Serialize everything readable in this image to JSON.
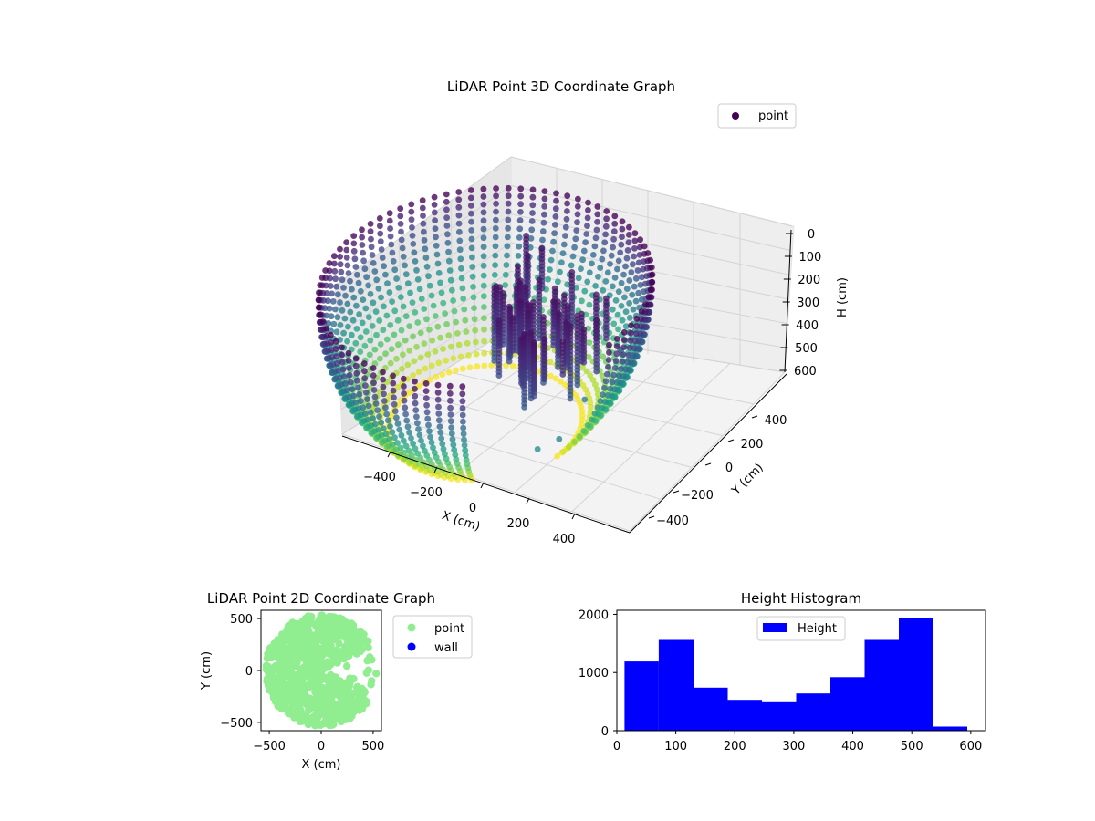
{
  "chart_data": [
    {
      "type": "scatter",
      "projection": "3d",
      "title": "LiDAR Point 3D Coordinate Graph",
      "xlabel": "X (cm)",
      "ylabel": "Y (cm)",
      "zlabel": "H (cm)",
      "xticks": [
        "−400",
        "−200",
        "0",
        "200",
        "400"
      ],
      "yticks": [
        "400",
        "200",
        "0",
        "−200",
        "−400"
      ],
      "zticks": [
        "0",
        "100",
        "200",
        "300",
        "400",
        "500",
        "600"
      ],
      "z_inverted": true,
      "colormap": "viridis",
      "legend": {
        "position": "top-right",
        "entries": [
          "point"
        ]
      },
      "grid": true,
      "description_shape": "bowl-shaped shell of points: outer ring radius about 550 cm, height 0-600 cm, plus an inner cluster near the top"
    },
    {
      "type": "scatter",
      "title": "LiDAR Point 2D Coordinate Graph",
      "xlabel": "X (cm)",
      "ylabel": "Y (cm)",
      "xlim": [
        -580,
        580
      ],
      "ylim": [
        -580,
        580
      ],
      "xticks": [
        -500,
        0,
        500
      ],
      "yticks": [
        -500,
        0,
        500
      ],
      "series": [
        {
          "name": "point",
          "color": "#90ee90"
        },
        {
          "name": "wall",
          "color": "#0000ff"
        }
      ],
      "legend": {
        "position": "outside-right"
      },
      "grid": false
    },
    {
      "type": "bar",
      "subtype": "histogram",
      "title": "Height Histogram",
      "bin_edges": [
        13,
        71,
        130,
        188,
        246,
        304,
        362,
        420,
        478,
        536,
        594
      ],
      "values": [
        1190,
        1560,
        740,
        530,
        490,
        640,
        920,
        1560,
        1940,
        70
      ],
      "xlim": [
        0,
        625
      ],
      "ylim": [
        0,
        2070
      ],
      "xticks": [
        0,
        100,
        200,
        300,
        400,
        500,
        600
      ],
      "yticks": [
        0,
        1000,
        2000
      ],
      "series": [
        {
          "name": "Height",
          "color": "#0000ff"
        }
      ],
      "legend": {
        "position": "top-center"
      },
      "grid": false
    }
  ]
}
